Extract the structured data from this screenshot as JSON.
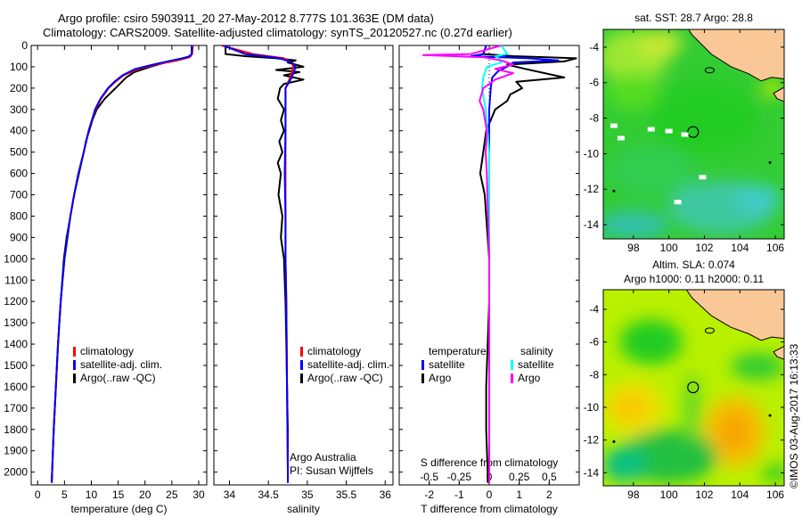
{
  "header": {
    "title_line1": "Argo profile: csiro 5903911_20 27-May-2012 8.777S 101.363E (DM data)",
    "title_line2": "Climatology: CARS2009. Satellite-adjusted climatology: synTS_20120527.nc (0.27d earlier)"
  },
  "colors": {
    "climatology": "#ff0000",
    "satellite": "#0000ff",
    "argo": "#000000",
    "s_satellite": "#00ffff",
    "s_argo": "#ff00ff",
    "land": "#f9c896"
  },
  "stamp": "©IMOS 03-Aug-2017 16:13:33",
  "chart_data": [
    {
      "type": "line",
      "id": "temperature",
      "xlabel": "temperature (deg C)",
      "ylabel": "",
      "xlim": [
        -1.2,
        31.5
      ],
      "ylim": [
        2060,
        0
      ],
      "xticks": [
        0,
        5,
        10,
        15,
        20,
        25,
        30
      ],
      "yticks": [
        0,
        100,
        200,
        300,
        400,
        500,
        600,
        700,
        800,
        900,
        1000,
        1100,
        1200,
        1300,
        1400,
        1500,
        1600,
        1700,
        1800,
        1900,
        2000
      ],
      "legend": [
        "climatology",
        "satellite-adj. clim.",
        "Argo(..raw -QC)"
      ],
      "series": [
        {
          "name": "Argo(..raw -QC)",
          "color": "#000000",
          "points": [
            [
              0,
              28.7
            ],
            [
              40,
              28.7
            ],
            [
              50,
              28.5
            ],
            [
              60,
              27
            ],
            [
              75,
              24.5
            ],
            [
              100,
              21
            ],
            [
              125,
              18
            ],
            [
              150,
              16.5
            ],
            [
              175,
              15.5
            ],
            [
              200,
              14.5
            ],
            [
              225,
              13.5
            ],
            [
              250,
              12.5
            ],
            [
              300,
              11
            ],
            [
              350,
              10.2
            ],
            [
              400,
              9.6
            ],
            [
              450,
              9
            ],
            [
              500,
              8.6
            ],
            [
              600,
              7.7
            ],
            [
              700,
              6.8
            ],
            [
              800,
              6.1
            ],
            [
              900,
              5.4
            ],
            [
              1000,
              4.9
            ],
            [
              1200,
              4.3
            ],
            [
              1400,
              3.8
            ],
            [
              1600,
              3.4
            ],
            [
              1800,
              3
            ],
            [
              2000,
              2.7
            ],
            [
              2050,
              2.65
            ]
          ]
        },
        {
          "name": "climatology",
          "color": "#ff0000",
          "points": [
            [
              0,
              28.9
            ],
            [
              40,
              28.8
            ],
            [
              55,
              28.3
            ],
            [
              70,
              26
            ],
            [
              90,
              22
            ],
            [
              110,
              18.8
            ],
            [
              140,
              16
            ],
            [
              170,
              14.5
            ],
            [
              200,
              13.2
            ],
            [
              250,
              11.8
            ],
            [
              300,
              10.8
            ],
            [
              400,
              9.5
            ],
            [
              500,
              8.6
            ],
            [
              600,
              7.6
            ],
            [
              700,
              6.8
            ],
            [
              800,
              6.1
            ],
            [
              1000,
              5
            ],
            [
              1200,
              4.3
            ],
            [
              1400,
              3.8
            ],
            [
              1600,
              3.4
            ],
            [
              1800,
              3
            ],
            [
              2000,
              2.7
            ],
            [
              2050,
              2.6
            ]
          ]
        },
        {
          "name": "satellite-adj. clim.",
          "color": "#0000ff",
          "points": [
            [
              0,
              28.8
            ],
            [
              40,
              28.7
            ],
            [
              55,
              28
            ],
            [
              70,
              25
            ],
            [
              90,
              21.5
            ],
            [
              110,
              18.2
            ],
            [
              140,
              15.8
            ],
            [
              170,
              14.3
            ],
            [
              200,
              13.1
            ],
            [
              250,
              11.7
            ],
            [
              300,
              10.7
            ],
            [
              400,
              9.5
            ],
            [
              500,
              8.6
            ],
            [
              600,
              7.6
            ],
            [
              700,
              6.8
            ],
            [
              800,
              6.1
            ],
            [
              1000,
              5
            ],
            [
              1200,
              4.3
            ],
            [
              1400,
              3.8
            ],
            [
              1600,
              3.4
            ],
            [
              1800,
              3
            ],
            [
              2000,
              2.7
            ],
            [
              2050,
              2.6
            ]
          ]
        }
      ]
    },
    {
      "type": "line",
      "id": "salinity",
      "xlabel": "salinity",
      "xlim": [
        33.8,
        36.1
      ],
      "ylim": [
        2060,
        0
      ],
      "xticks": [
        34,
        34.5,
        35,
        35.5,
        36
      ],
      "legend": [
        "climatology",
        "satellite-adj. clim.",
        "Argo(..raw -QC)"
      ],
      "annotation": [
        "Argo Australia",
        "PI: Susan Wijffels"
      ],
      "series": [
        {
          "name": "Argo(..raw -QC)",
          "color": "#000000",
          "points": [
            [
              0,
              33.95
            ],
            [
              40,
              33.95
            ],
            [
              50,
              34.2
            ],
            [
              60,
              34.6
            ],
            [
              70,
              34.85
            ],
            [
              80,
              34.75
            ],
            [
              100,
              34.95
            ],
            [
              115,
              34.6
            ],
            [
              125,
              34.9
            ],
            [
              140,
              34.7
            ],
            [
              160,
              34.95
            ],
            [
              180,
              34.7
            ],
            [
              200,
              34.65
            ],
            [
              250,
              34.62
            ],
            [
              300,
              34.7
            ],
            [
              350,
              34.66
            ],
            [
              400,
              34.7
            ],
            [
              450,
              34.64
            ],
            [
              500,
              34.68
            ],
            [
              550,
              34.62
            ],
            [
              600,
              34.66
            ],
            [
              700,
              34.63
            ],
            [
              800,
              34.68
            ],
            [
              900,
              34.66
            ],
            [
              1000,
              34.7
            ],
            [
              1100,
              34.71
            ],
            [
              1200,
              34.72
            ],
            [
              1400,
              34.73
            ],
            [
              1600,
              34.74
            ],
            [
              1800,
              34.75
            ],
            [
              2000,
              34.75
            ],
            [
              2050,
              34.75
            ]
          ]
        },
        {
          "name": "climatology",
          "color": "#ff0000",
          "points": [
            [
              0,
              33.9
            ],
            [
              40,
              34.3
            ],
            [
              60,
              34.7
            ],
            [
              80,
              34.8
            ],
            [
              100,
              34.82
            ],
            [
              150,
              34.78
            ],
            [
              200,
              34.72
            ],
            [
              300,
              34.72
            ],
            [
              400,
              34.72
            ],
            [
              600,
              34.72
            ],
            [
              800,
              34.72
            ],
            [
              1000,
              34.72
            ],
            [
              1200,
              34.73
            ],
            [
              1600,
              34.74
            ],
            [
              2000,
              34.75
            ],
            [
              2050,
              34.75
            ]
          ]
        },
        {
          "name": "satellite-adj. clim.",
          "color": "#0000ff",
          "points": [
            [
              0,
              33.92
            ],
            [
              40,
              34.2
            ],
            [
              60,
              34.65
            ],
            [
              80,
              34.8
            ],
            [
              100,
              34.85
            ],
            [
              150,
              34.8
            ],
            [
              200,
              34.72
            ],
            [
              300,
              34.72
            ],
            [
              400,
              34.72
            ],
            [
              600,
              34.71
            ],
            [
              800,
              34.72
            ],
            [
              1000,
              34.72
            ],
            [
              1200,
              34.73
            ],
            [
              1600,
              34.74
            ],
            [
              2000,
              34.75
            ],
            [
              2050,
              34.75
            ]
          ]
        }
      ]
    },
    {
      "type": "line",
      "id": "difference",
      "xlabel": "T difference from climatology",
      "x2label": "S difference from climatology",
      "xlim": [
        -3,
        3
      ],
      "ylim": [
        2060,
        0
      ],
      "xticks": [
        -2,
        -1,
        0,
        1,
        2
      ],
      "x2ticks": [
        -0.5,
        -0.25,
        0,
        0.25,
        0.5
      ],
      "x2tick_labels": [
        "-0.5",
        "-0.25",
        "0",
        "0.25",
        "0.5"
      ],
      "legend_titles": [
        "temperature",
        "salinity"
      ],
      "legend": [
        "satellite",
        "Argo",
        "satellite",
        "Argo"
      ],
      "series": [
        {
          "name": "temperature Argo",
          "color": "#000000",
          "points": [
            [
              0,
              -0.1
            ],
            [
              40,
              -0.2
            ],
            [
              50,
              0.8
            ],
            [
              60,
              2.9
            ],
            [
              75,
              2.5
            ],
            [
              90,
              0.6
            ],
            [
              110,
              1.2
            ],
            [
              150,
              2.5
            ],
            [
              170,
              0.9
            ],
            [
              200,
              1.1
            ],
            [
              230,
              0.7
            ],
            [
              260,
              0.6
            ],
            [
              300,
              0.2
            ],
            [
              350,
              0.05
            ],
            [
              400,
              -0.1
            ],
            [
              500,
              -0.2
            ],
            [
              600,
              -0.3
            ],
            [
              700,
              -0.15
            ],
            [
              800,
              -0.1
            ],
            [
              900,
              -0.05
            ],
            [
              1000,
              0
            ],
            [
              1200,
              0
            ],
            [
              1400,
              -0.05
            ],
            [
              1600,
              -0.1
            ],
            [
              1800,
              -0.1
            ],
            [
              2000,
              -0.05
            ],
            [
              2050,
              -0.05
            ]
          ]
        },
        {
          "name": "temperature satellite",
          "color": "#0000ff",
          "points": [
            [
              0,
              -0.1
            ],
            [
              40,
              -0.2
            ],
            [
              50,
              -0.6
            ],
            [
              60,
              1.3
            ],
            [
              70,
              2.3
            ],
            [
              80,
              0.8
            ],
            [
              100,
              0.6
            ],
            [
              120,
              0.3
            ],
            [
              150,
              0.1
            ],
            [
              200,
              0.05
            ],
            [
              300,
              0
            ],
            [
              500,
              0
            ],
            [
              1000,
              0
            ],
            [
              2050,
              0
            ]
          ]
        },
        {
          "name": "salinity satellite",
          "color": "#00ffff",
          "points": [
            [
              0,
              0.1
            ],
            [
              40,
              0.15
            ],
            [
              50,
              0.05
            ],
            [
              60,
              0.08
            ],
            [
              80,
              0.1
            ],
            [
              100,
              -0.02
            ],
            [
              150,
              -0.05
            ],
            [
              200,
              -0.06
            ],
            [
              300,
              -0.03
            ],
            [
              500,
              0
            ],
            [
              1000,
              0
            ],
            [
              2050,
              0
            ]
          ]
        },
        {
          "name": "salinity Argo",
          "color": "#ff00ff",
          "points": [
            [
              0,
              0.1
            ],
            [
              40,
              -0.15
            ],
            [
              45,
              -0.55
            ],
            [
              55,
              -0.05
            ],
            [
              70,
              0.1
            ],
            [
              90,
              0.2
            ],
            [
              110,
              0.05
            ],
            [
              130,
              0.2
            ],
            [
              160,
              0.05
            ],
            [
              200,
              -0.05
            ],
            [
              260,
              -0.08
            ],
            [
              300,
              -0.05
            ],
            [
              400,
              -0.02
            ],
            [
              500,
              -0.03
            ],
            [
              600,
              -0.02
            ],
            [
              800,
              -0.01
            ],
            [
              1000,
              0
            ],
            [
              2050,
              0
            ]
          ]
        }
      ]
    },
    {
      "type": "heatmap",
      "id": "sst_map",
      "title": "sat. SST: 28.7 Argo: 28.8",
      "xlim": [
        96.3,
        106.5
      ],
      "ylim": [
        -14.8,
        -3
      ],
      "xticks": [
        98,
        100,
        102,
        104,
        106
      ],
      "yticks": [
        -4,
        -6,
        -8,
        -10,
        -12,
        -14
      ],
      "argo_position": [
        101.363,
        -8.777
      ]
    },
    {
      "type": "heatmap",
      "id": "sla_map",
      "title_line1": "Altim. SLA: 0.074",
      "title_line2": "Argo h1000: 0.11 h2000: 0.11",
      "xlim": [
        96.3,
        106.5
      ],
      "ylim": [
        -14.8,
        -2.8
      ],
      "xticks": [
        98,
        100,
        102,
        104,
        106
      ],
      "yticks": [
        -4,
        -6,
        -8,
        -10,
        -12,
        -14
      ],
      "argo_position": [
        101.363,
        -8.777
      ]
    }
  ]
}
